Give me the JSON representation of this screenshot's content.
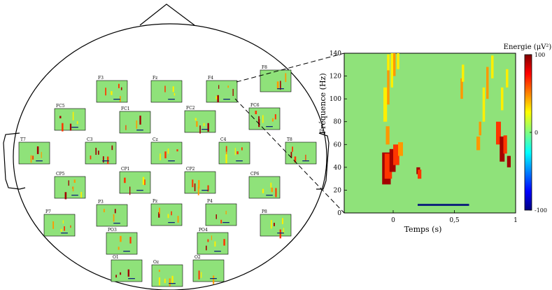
{
  "colors": {
    "background": "#8fe27a",
    "head_outline": "#000000",
    "hot_dark": "#a30000",
    "hot_red": "#ff3500",
    "hot_orange": "#ff9800",
    "hot_yellow": "#ffef00",
    "baseline_bar": "#10247a"
  },
  "electrodes": [
    {
      "id": "F3",
      "label": "F3"
    },
    {
      "id": "Fz",
      "label": "Fz"
    },
    {
      "id": "F4",
      "label": "F4"
    },
    {
      "id": "F8",
      "label": "F8"
    },
    {
      "id": "FC5",
      "label": "FC5"
    },
    {
      "id": "FC1",
      "label": "FC1"
    },
    {
      "id": "FC2",
      "label": "FC2"
    },
    {
      "id": "FC6",
      "label": "FC6"
    },
    {
      "id": "T7",
      "label": "T7"
    },
    {
      "id": "C3",
      "label": "C3"
    },
    {
      "id": "Cz",
      "label": "Cz"
    },
    {
      "id": "C4",
      "label": "C4"
    },
    {
      "id": "T8",
      "label": "T8"
    },
    {
      "id": "CP5",
      "label": "CP5"
    },
    {
      "id": "CP1",
      "label": "CP1"
    },
    {
      "id": "CP2",
      "label": "CP2"
    },
    {
      "id": "CP6",
      "label": "CP6"
    },
    {
      "id": "P7",
      "label": "P7"
    },
    {
      "id": "P3",
      "label": "P3"
    },
    {
      "id": "Pz",
      "label": "Pz"
    },
    {
      "id": "P4",
      "label": "P4"
    },
    {
      "id": "P8",
      "label": "P8"
    },
    {
      "id": "PO3",
      "label": "PO3"
    },
    {
      "id": "PO4",
      "label": "PO4"
    },
    {
      "id": "O1",
      "label": "O1"
    },
    {
      "id": "Oz",
      "label": "Oz"
    },
    {
      "id": "O2",
      "label": "O2"
    }
  ],
  "zoom": {
    "source_electrode": "F4",
    "ylabel": "Fréquence (Hz)",
    "xlabel": "Temps (s)",
    "yticks": [
      "0",
      "20",
      "40",
      "60",
      "80",
      "100",
      "120",
      "140"
    ],
    "xticks": [
      "0",
      "0,5",
      "1"
    ]
  },
  "colorbar": {
    "title": "Energie (μV²)",
    "ticks": [
      "100",
      "0",
      "-100"
    ],
    "range": [
      -100,
      100
    ]
  },
  "chart_data": {
    "type": "heatmap",
    "title": "",
    "xlabel": "Temps (s)",
    "ylabel": "Fréquence (Hz)",
    "xlim": [
      -0.4,
      1.0
    ],
    "ylim": [
      0,
      140
    ],
    "xticks": [
      0,
      0.5,
      1
    ],
    "yticks": [
      0,
      20,
      40,
      60,
      80,
      100,
      120,
      140
    ],
    "colorbar_label": "Energie (μV²)",
    "colorbar_range": [
      -100,
      100
    ],
    "baseline_interval_s": [
      0.2,
      0.62
    ],
    "grid": false
  }
}
